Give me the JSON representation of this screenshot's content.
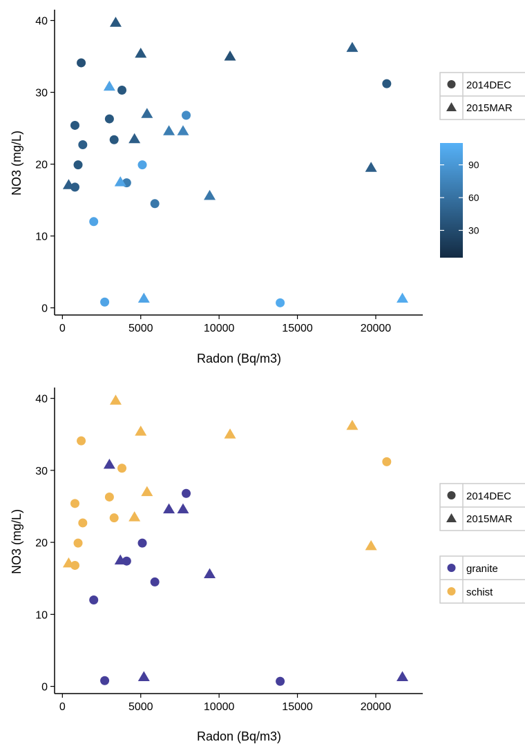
{
  "chart_data": [
    {
      "type": "scatter",
      "xlabel": "Radon (Bq/m3)",
      "ylabel": "NO3 (mg/L)",
      "xlim": [
        -500,
        23000
      ],
      "ylim": [
        -1,
        41.5
      ],
      "xticks": [
        0,
        5000,
        10000,
        15000,
        20000
      ],
      "xtick_labels": [
        "0",
        "5000",
        "10000",
        "15000",
        "20000"
      ],
      "yticks": [
        0,
        10,
        20,
        30,
        40
      ],
      "ytick_labels": [
        "0",
        "10",
        "20",
        "30",
        "40"
      ],
      "grid": false,
      "shape_legend": {
        "placement": "right",
        "entries": [
          {
            "label": "2014DEC",
            "shape": "circle"
          },
          {
            "label": "2015MAR",
            "shape": "triangle"
          }
        ]
      },
      "colorbar": {
        "placement": "right",
        "range": [
          5,
          110
        ],
        "ticks": [
          30,
          60,
          90
        ],
        "tick_labels": [
          "30",
          "60",
          "90"
        ],
        "low_color": "#132b43",
        "high_color": "#56b1f7"
      },
      "series": [
        {
          "marker": "circle",
          "points": [
            {
              "x": 1200,
              "y": 34.1,
              "c": 35
            },
            {
              "x": 3800,
              "y": 30.3,
              "c": 40
            },
            {
              "x": 20700,
              "y": 31.2,
              "c": 40
            },
            {
              "x": 3000,
              "y": 26.3,
              "c": 40
            },
            {
              "x": 800,
              "y": 25.4,
              "c": 40
            },
            {
              "x": 7900,
              "y": 26.8,
              "c": 82
            },
            {
              "x": 3300,
              "y": 23.4,
              "c": 40
            },
            {
              "x": 1300,
              "y": 22.7,
              "c": 45
            },
            {
              "x": 1000,
              "y": 19.9,
              "c": 40
            },
            {
              "x": 5100,
              "y": 19.9,
              "c": 100
            },
            {
              "x": 800,
              "y": 16.8,
              "c": 45
            },
            {
              "x": 4100,
              "y": 17.4,
              "c": 70
            },
            {
              "x": 5900,
              "y": 14.5,
              "c": 65
            },
            {
              "x": 2000,
              "y": 12.0,
              "c": 100
            },
            {
              "x": 2700,
              "y": 0.8,
              "c": 100
            },
            {
              "x": 13900,
              "y": 0.7,
              "c": 105
            }
          ]
        },
        {
          "marker": "triangle",
          "points": [
            {
              "x": 3400,
              "y": 39.7,
              "c": 40
            },
            {
              "x": 5000,
              "y": 35.4,
              "c": 40
            },
            {
              "x": 10700,
              "y": 35.0,
              "c": 35
            },
            {
              "x": 18500,
              "y": 36.2,
              "c": 45
            },
            {
              "x": 3000,
              "y": 30.8,
              "c": 100
            },
            {
              "x": 5400,
              "y": 27.0,
              "c": 55
            },
            {
              "x": 6800,
              "y": 24.6,
              "c": 70
            },
            {
              "x": 7700,
              "y": 24.6,
              "c": 75
            },
            {
              "x": 4600,
              "y": 23.5,
              "c": 45
            },
            {
              "x": 19700,
              "y": 19.5,
              "c": 45
            },
            {
              "x": 400,
              "y": 17.1,
              "c": 45
            },
            {
              "x": 3700,
              "y": 17.5,
              "c": 100
            },
            {
              "x": 9400,
              "y": 15.6,
              "c": 65
            },
            {
              "x": 5200,
              "y": 1.3,
              "c": 100
            },
            {
              "x": 21700,
              "y": 1.3,
              "c": 105
            }
          ]
        }
      ]
    },
    {
      "type": "scatter",
      "xlabel": "Radon (Bq/m3)",
      "ylabel": "NO3 (mg/L)",
      "xlim": [
        -500,
        23000
      ],
      "ylim": [
        -1,
        41.5
      ],
      "xticks": [
        0,
        5000,
        10000,
        15000,
        20000
      ],
      "xtick_labels": [
        "0",
        "5000",
        "10000",
        "15000",
        "20000"
      ],
      "yticks": [
        0,
        10,
        20,
        30,
        40
      ],
      "ytick_labels": [
        "0",
        "10",
        "20",
        "30",
        "40"
      ],
      "grid": false,
      "shape_legend": {
        "placement": "right",
        "entries": [
          {
            "label": "2014DEC",
            "shape": "circle"
          },
          {
            "label": "2015MAR",
            "shape": "triangle"
          }
        ]
      },
      "color_legend": {
        "placement": "right",
        "entries": [
          {
            "label": "granite",
            "color": "#463f9a"
          },
          {
            "label": "schist",
            "color": "#f0b754"
          }
        ]
      },
      "series": [
        {
          "marker": "circle",
          "points": [
            {
              "x": 1200,
              "y": 34.1,
              "group": "schist"
            },
            {
              "x": 3800,
              "y": 30.3,
              "group": "schist"
            },
            {
              "x": 20700,
              "y": 31.2,
              "group": "schist"
            },
            {
              "x": 3000,
              "y": 26.3,
              "group": "schist"
            },
            {
              "x": 800,
              "y": 25.4,
              "group": "schist"
            },
            {
              "x": 7900,
              "y": 26.8,
              "group": "granite"
            },
            {
              "x": 3300,
              "y": 23.4,
              "group": "schist"
            },
            {
              "x": 1300,
              "y": 22.7,
              "group": "schist"
            },
            {
              "x": 1000,
              "y": 19.9,
              "group": "schist"
            },
            {
              "x": 5100,
              "y": 19.9,
              "group": "granite"
            },
            {
              "x": 800,
              "y": 16.8,
              "group": "schist"
            },
            {
              "x": 4100,
              "y": 17.4,
              "group": "granite"
            },
            {
              "x": 5900,
              "y": 14.5,
              "group": "granite"
            },
            {
              "x": 2000,
              "y": 12.0,
              "group": "granite"
            },
            {
              "x": 2700,
              "y": 0.8,
              "group": "granite"
            },
            {
              "x": 13900,
              "y": 0.7,
              "group": "granite"
            }
          ]
        },
        {
          "marker": "triangle",
          "points": [
            {
              "x": 3400,
              "y": 39.7,
              "group": "schist"
            },
            {
              "x": 5000,
              "y": 35.4,
              "group": "schist"
            },
            {
              "x": 10700,
              "y": 35.0,
              "group": "schist"
            },
            {
              "x": 18500,
              "y": 36.2,
              "group": "schist"
            },
            {
              "x": 3000,
              "y": 30.8,
              "group": "granite"
            },
            {
              "x": 5400,
              "y": 27.0,
              "group": "schist"
            },
            {
              "x": 6800,
              "y": 24.6,
              "group": "granite"
            },
            {
              "x": 7700,
              "y": 24.6,
              "group": "granite"
            },
            {
              "x": 4600,
              "y": 23.5,
              "group": "schist"
            },
            {
              "x": 19700,
              "y": 19.5,
              "group": "schist"
            },
            {
              "x": 400,
              "y": 17.1,
              "group": "schist"
            },
            {
              "x": 3700,
              "y": 17.5,
              "group": "granite"
            },
            {
              "x": 9400,
              "y": 15.6,
              "group": "granite"
            },
            {
              "x": 5200,
              "y": 1.3,
              "group": "granite"
            },
            {
              "x": 21700,
              "y": 1.3,
              "group": "granite"
            }
          ]
        }
      ]
    }
  ]
}
